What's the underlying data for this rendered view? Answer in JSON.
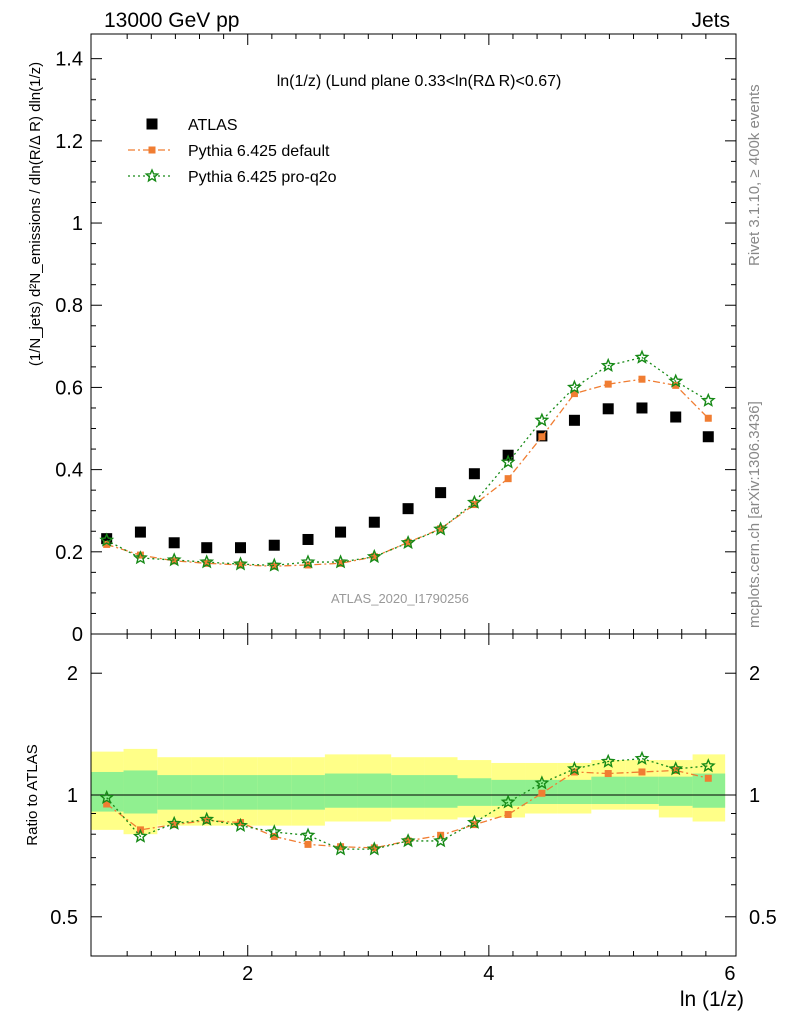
{
  "header": {
    "left": "13000 GeV pp",
    "right": "Jets"
  },
  "side_labels": {
    "rivet": "Rivet 3.1.10, ≥ 400k events",
    "mcplots": "mcplots.cern.ch [arXiv:1306.3436]"
  },
  "watermark": "ATLAS_2020_I1790256",
  "chart_data": [
    {
      "type": "scatter",
      "title": "ln(1/z) (Lund plane 0.33<ln(RΔ R)<0.67)",
      "xlabel": "ln (1/z)",
      "ylabel": "(1/N_jets) d²N_emissions / dln(R/Δ R) dln(1/z)",
      "xlim": [
        0.7,
        6.05
      ],
      "ylim": [
        0,
        1.46
      ],
      "yticks": [
        0,
        0.2,
        0.4,
        0.6,
        0.8,
        1,
        1.2,
        1.4
      ],
      "ytick_labels": [
        "0",
        "0.2",
        "0.4",
        "0.6",
        "0.8",
        "1",
        "1.2",
        "1.4"
      ],
      "legend_position": "top-left",
      "x": [
        0.83,
        1.11,
        1.39,
        1.66,
        1.94,
        2.22,
        2.5,
        2.77,
        3.05,
        3.33,
        3.6,
        3.88,
        4.16,
        4.44,
        4.71,
        4.99,
        5.27,
        5.55,
        5.82
      ],
      "series": [
        {
          "name": "ATLAS",
          "color": "#000000",
          "marker": "square",
          "values": [
            0.232,
            0.248,
            0.222,
            0.21,
            0.21,
            0.216,
            0.23,
            0.248,
            0.272,
            0.305,
            0.344,
            0.39,
            0.435,
            0.482,
            0.52,
            0.548,
            0.55,
            0.528,
            0.48
          ]
        },
        {
          "name": "Pythia 6.425 default",
          "color": "#f07d32",
          "marker": "square-small",
          "dash": "7 3 2 3",
          "values": [
            0.218,
            0.192,
            0.178,
            0.172,
            0.168,
            0.165,
            0.168,
            0.172,
            0.188,
            0.223,
            0.256,
            0.315,
            0.378,
            0.48,
            0.585,
            0.608,
            0.62,
            0.605,
            0.525
          ]
        },
        {
          "name": "Pythia 6.425 pro-q2o",
          "color": "#178a17",
          "marker": "star",
          "dash": "2 3",
          "values": [
            0.228,
            0.185,
            0.18,
            0.175,
            0.17,
            0.167,
            0.175,
            0.175,
            0.188,
            0.222,
            0.255,
            0.32,
            0.418,
            0.52,
            0.6,
            0.653,
            0.673,
            0.615,
            0.568
          ]
        }
      ]
    },
    {
      "type": "line",
      "ylabel": "Ratio to ATLAS",
      "xlabel": "ln (1/z)",
      "xlim": [
        0.7,
        6.05
      ],
      "ylim": [
        0.4,
        2.5
      ],
      "yscale": "log",
      "xticks": [
        2,
        4,
        6
      ],
      "xtick_labels": [
        "2",
        "4",
        "6"
      ],
      "yticks": [
        0.5,
        1,
        2
      ],
      "ytick_labels": [
        "0.5",
        "1",
        "2"
      ],
      "x": [
        0.83,
        1.11,
        1.39,
        1.66,
        1.94,
        2.22,
        2.5,
        2.77,
        3.05,
        3.33,
        3.6,
        3.88,
        4.16,
        4.44,
        4.71,
        4.99,
        5.27,
        5.55,
        5.82
      ],
      "bin_edges": [
        0.7,
        0.97,
        1.25,
        1.53,
        1.8,
        2.08,
        2.36,
        2.64,
        2.91,
        3.19,
        3.47,
        3.74,
        4.02,
        4.3,
        4.57,
        4.85,
        5.13,
        5.41,
        5.69,
        5.96
      ],
      "bands": [
        {
          "color": "#ffff88",
          "lo": [
            0.82,
            0.8,
            0.84,
            0.84,
            0.84,
            0.84,
            0.84,
            0.86,
            0.86,
            0.87,
            0.87,
            0.88,
            0.88,
            0.9,
            0.9,
            0.92,
            0.92,
            0.88,
            0.86
          ],
          "hi": [
            1.28,
            1.3,
            1.24,
            1.24,
            1.24,
            1.24,
            1.24,
            1.26,
            1.26,
            1.24,
            1.24,
            1.22,
            1.2,
            1.2,
            1.2,
            1.22,
            1.22,
            1.22,
            1.26
          ]
        },
        {
          "color": "#90f090",
          "lo": [
            0.91,
            0.9,
            0.92,
            0.92,
            0.92,
            0.92,
            0.92,
            0.93,
            0.93,
            0.93,
            0.93,
            0.94,
            0.94,
            0.95,
            0.95,
            0.95,
            0.95,
            0.94,
            0.93
          ],
          "hi": [
            1.14,
            1.15,
            1.12,
            1.12,
            1.12,
            1.12,
            1.12,
            1.13,
            1.13,
            1.12,
            1.12,
            1.1,
            1.09,
            1.09,
            1.09,
            1.11,
            1.11,
            1.11,
            1.13
          ]
        }
      ],
      "series": [
        {
          "name": "Pythia 6.425 default",
          "color": "#f07d32",
          "marker": "square-small",
          "dash": "7 3 2 3",
          "values": [
            0.95,
            0.82,
            0.845,
            0.865,
            0.855,
            0.79,
            0.755,
            0.745,
            0.74,
            0.77,
            0.795,
            0.845,
            0.895,
            1.01,
            1.14,
            1.13,
            1.14,
            1.15,
            1.1
          ]
        },
        {
          "name": "Pythia 6.425 pro-q2o",
          "color": "#178a17",
          "marker": "star",
          "dash": "2 3",
          "values": [
            0.985,
            0.79,
            0.85,
            0.87,
            0.84,
            0.81,
            0.795,
            0.735,
            0.735,
            0.77,
            0.77,
            0.855,
            0.96,
            1.07,
            1.16,
            1.21,
            1.23,
            1.16,
            1.18
          ]
        }
      ]
    }
  ]
}
